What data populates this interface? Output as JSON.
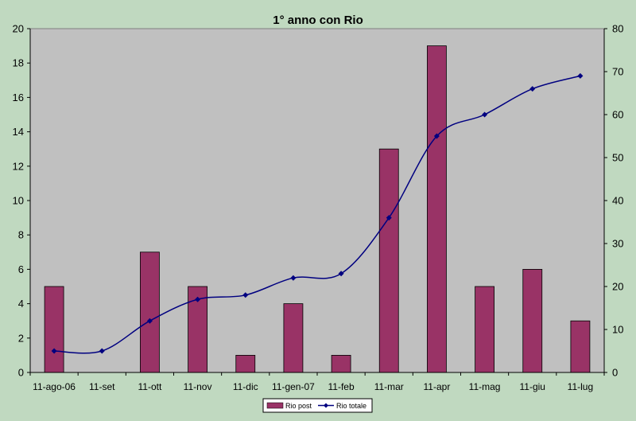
{
  "chart_data": {
    "type": "bar",
    "title": "1° anno con Rio",
    "categories": [
      "11-ago-06",
      "11-set",
      "11-ott",
      "11-nov",
      "11-dic",
      "11-gen-07",
      "11-feb",
      "11-mar",
      "11-apr",
      "11-mag",
      "11-giu",
      "11-lug"
    ],
    "series": [
      {
        "name": "Rio post",
        "type": "bar",
        "axis": "left",
        "color": "#993366",
        "values": [
          5,
          0,
          7,
          5,
          1,
          4,
          1,
          13,
          19,
          5,
          6,
          3
        ]
      },
      {
        "name": "Rio totale",
        "type": "line",
        "axis": "right",
        "color": "#000080",
        "values": [
          5,
          5,
          12,
          17,
          18,
          22,
          23,
          36,
          55,
          60,
          66,
          69
        ]
      }
    ],
    "y_left": {
      "min": 0,
      "max": 20,
      "ticks": [
        "0",
        "2",
        "4",
        "6",
        "8",
        "10",
        "12",
        "14",
        "16",
        "18",
        "20"
      ]
    },
    "y_right": {
      "min": 0,
      "max": 80,
      "ticks": [
        "0",
        "10",
        "20",
        "30",
        "40",
        "50",
        "60",
        "70",
        "80"
      ]
    },
    "grid": false,
    "legend_position": "bottom",
    "colors": {
      "background": "#c0d9c0",
      "plot_area": "#c0c0c0"
    }
  }
}
